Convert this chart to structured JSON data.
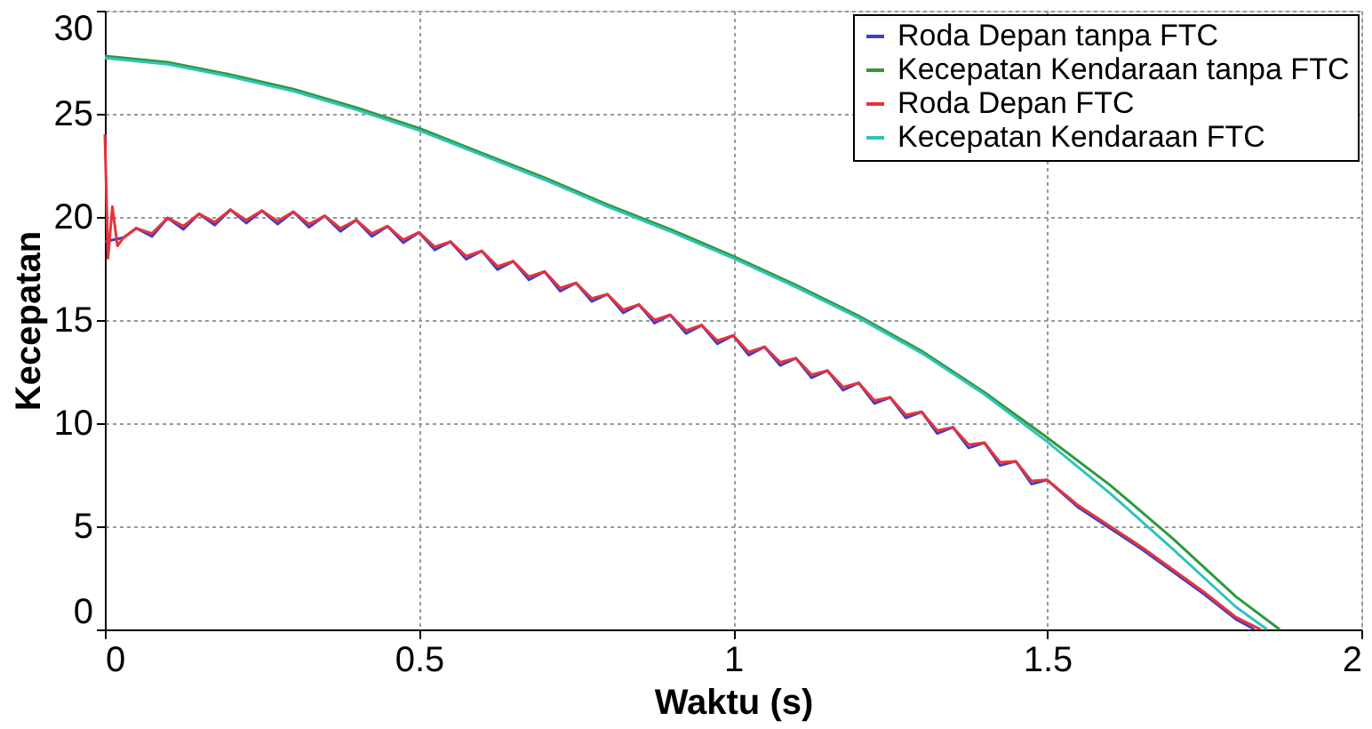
{
  "chart_data": {
    "type": "line",
    "xlabel": "Waktu (s)",
    "ylabel": "Kecepatan",
    "xlim": [
      0,
      2
    ],
    "ylim": [
      0,
      30
    ],
    "xticks": [
      0,
      0.5,
      1,
      1.5,
      2
    ],
    "yticks": [
      0,
      5,
      10,
      15,
      20,
      25,
      30
    ],
    "grid": true,
    "legend": "top right",
    "line_style": "solid",
    "marker": "none",
    "series": [
      {
        "name": "Roda Depan tanpa FTC",
        "color": "#4040c0",
        "x": [
          0,
          0.03,
          0.05,
          0.075,
          0.1,
          0.125,
          0.15,
          0.175,
          0.2,
          0.225,
          0.25,
          0.275,
          0.3,
          0.325,
          0.35,
          0.375,
          0.4,
          0.425,
          0.45,
          0.475,
          0.5,
          0.525,
          0.55,
          0.575,
          0.6,
          0.625,
          0.65,
          0.675,
          0.7,
          0.725,
          0.75,
          0.775,
          0.8,
          0.825,
          0.85,
          0.875,
          0.9,
          0.925,
          0.95,
          0.975,
          1.0,
          1.025,
          1.05,
          1.075,
          1.1,
          1.125,
          1.15,
          1.175,
          1.2,
          1.225,
          1.25,
          1.275,
          1.3,
          1.325,
          1.35,
          1.375,
          1.4,
          1.425,
          1.45,
          1.475,
          1.5,
          1.55,
          1.6,
          1.65,
          1.7,
          1.75,
          1.8,
          1.83
        ],
        "values": [
          18.8,
          19.0,
          19.45,
          19.05,
          19.95,
          19.4,
          20.15,
          19.6,
          20.35,
          19.7,
          20.3,
          19.65,
          20.25,
          19.5,
          20.05,
          19.3,
          19.85,
          19.05,
          19.55,
          18.75,
          19.25,
          18.4,
          18.8,
          17.95,
          18.35,
          17.45,
          17.85,
          16.95,
          17.35,
          16.4,
          16.8,
          15.9,
          16.25,
          15.35,
          15.75,
          14.85,
          15.25,
          14.35,
          14.75,
          13.85,
          14.25,
          13.3,
          13.7,
          12.8,
          13.15,
          12.2,
          12.55,
          11.6,
          11.95,
          10.95,
          11.25,
          10.25,
          10.55,
          9.5,
          9.8,
          8.8,
          9.05,
          7.95,
          8.15,
          7.05,
          7.25,
          5.9,
          4.9,
          3.9,
          2.8,
          1.7,
          0.5,
          0
        ]
      },
      {
        "name": "Kecepatan Kendaraan tanpa FTC",
        "color": "#2e9a3a",
        "x": [
          0,
          0.1,
          0.2,
          0.3,
          0.4,
          0.5,
          0.6,
          0.7,
          0.8,
          0.9,
          1.0,
          1.1,
          1.2,
          1.3,
          1.4,
          1.5,
          1.6,
          1.7,
          1.8,
          1.87
        ],
        "values": [
          27.8,
          27.5,
          26.9,
          26.2,
          25.3,
          24.3,
          23.1,
          21.9,
          20.6,
          19.4,
          18.1,
          16.7,
          15.2,
          13.5,
          11.5,
          9.3,
          7.0,
          4.4,
          1.6,
          0
        ]
      },
      {
        "name": "Roda Depan FTC",
        "color": "#e8333a",
        "x": [
          0,
          0.005,
          0.012,
          0.02,
          0.03,
          0.05,
          0.075,
          0.1,
          0.125,
          0.15,
          0.175,
          0.2,
          0.225,
          0.25,
          0.275,
          0.3,
          0.325,
          0.35,
          0.375,
          0.4,
          0.425,
          0.45,
          0.475,
          0.5,
          0.525,
          0.55,
          0.575,
          0.6,
          0.625,
          0.65,
          0.675,
          0.7,
          0.725,
          0.75,
          0.775,
          0.8,
          0.825,
          0.85,
          0.875,
          0.9,
          0.925,
          0.95,
          0.975,
          1.0,
          1.025,
          1.05,
          1.075,
          1.1,
          1.125,
          1.15,
          1.175,
          1.2,
          1.225,
          1.25,
          1.275,
          1.3,
          1.325,
          1.35,
          1.375,
          1.4,
          1.425,
          1.45,
          1.475,
          1.5,
          1.55,
          1.6,
          1.65,
          1.7,
          1.75,
          1.8,
          1.84
        ],
        "values": [
          24.0,
          18.0,
          20.5,
          18.6,
          19.0,
          19.45,
          19.2,
          19.95,
          19.55,
          20.15,
          19.75,
          20.35,
          19.85,
          20.3,
          19.8,
          20.25,
          19.65,
          20.05,
          19.45,
          19.85,
          19.2,
          19.55,
          18.9,
          19.25,
          18.55,
          18.8,
          18.1,
          18.35,
          17.6,
          17.85,
          17.1,
          17.35,
          16.55,
          16.8,
          16.05,
          16.25,
          15.5,
          15.75,
          15.0,
          15.25,
          14.5,
          14.75,
          14.0,
          14.25,
          13.45,
          13.7,
          12.95,
          13.15,
          12.35,
          12.55,
          11.75,
          11.95,
          11.1,
          11.25,
          10.4,
          10.55,
          9.65,
          9.8,
          8.95,
          9.05,
          8.1,
          8.15,
          7.2,
          7.25,
          6.0,
          5.0,
          4.0,
          2.9,
          1.8,
          0.6,
          0
        ]
      },
      {
        "name": "Kecepatan Kendaraan FTC",
        "color": "#33c2b8",
        "x": [
          0,
          0.1,
          0.2,
          0.3,
          0.4,
          0.5,
          0.6,
          0.7,
          0.8,
          0.9,
          1.0,
          1.1,
          1.2,
          1.3,
          1.4,
          1.5,
          1.6,
          1.7,
          1.8,
          1.85
        ],
        "values": [
          27.7,
          27.4,
          26.8,
          26.1,
          25.2,
          24.2,
          23.0,
          21.8,
          20.5,
          19.3,
          18.0,
          16.6,
          15.1,
          13.4,
          11.4,
          9.1,
          6.6,
          3.9,
          1.1,
          0
        ]
      }
    ]
  }
}
